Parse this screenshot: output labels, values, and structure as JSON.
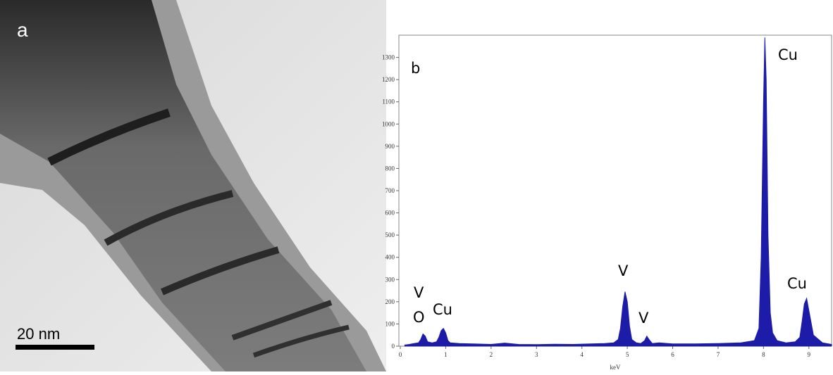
{
  "image_panel": {
    "label": "a",
    "scale_bar": "20 nm"
  },
  "chart_data": {
    "type": "area",
    "xlabel": "keV",
    "color": "#1c1ca8",
    "annotations": [
      "b",
      "Cu",
      "V",
      "V",
      "V",
      "O",
      "Cu",
      "Cu"
    ],
    "x": [
      0.1,
      0.2,
      0.3,
      0.4,
      0.45,
      0.5,
      0.55,
      0.6,
      0.7,
      0.8,
      0.85,
      0.9,
      0.95,
      1.0,
      1.05,
      1.1,
      1.3,
      1.6,
      2.0,
      2.3,
      2.6,
      3.0,
      3.4,
      3.8,
      4.2,
      4.5,
      4.7,
      4.8,
      4.85,
      4.9,
      4.95,
      5.0,
      5.05,
      5.1,
      5.2,
      5.3,
      5.38,
      5.43,
      5.48,
      5.55,
      5.7,
      6.0,
      6.5,
      7.0,
      7.5,
      7.8,
      7.9,
      7.95,
      8.0,
      8.03,
      8.06,
      8.1,
      8.15,
      8.2,
      8.3,
      8.5,
      8.7,
      8.8,
      8.85,
      8.9,
      8.95,
      9.0,
      9.1,
      9.3,
      9.5
    ],
    "values": [
      5,
      8,
      12,
      15,
      30,
      55,
      45,
      20,
      15,
      20,
      40,
      70,
      80,
      60,
      25,
      15,
      12,
      10,
      8,
      14,
      8,
      7,
      9,
      8,
      10,
      12,
      15,
      30,
      80,
      180,
      245,
      200,
      90,
      30,
      15,
      12,
      25,
      45,
      30,
      12,
      15,
      10,
      10,
      12,
      15,
      25,
      80,
      400,
      1100,
      1390,
      1200,
      500,
      150,
      60,
      25,
      15,
      20,
      40,
      110,
      190,
      215,
      160,
      50,
      15,
      8
    ],
    "xlim": [
      0,
      9.5
    ],
    "ylim": [
      0,
      1400
    ],
    "xticks": [
      0,
      1,
      2,
      3,
      4,
      5,
      6,
      7,
      8,
      9
    ],
    "yticks": [
      0,
      100,
      200,
      300,
      400,
      500,
      600,
      700,
      800,
      900,
      1000,
      1100,
      1200,
      1300
    ]
  }
}
